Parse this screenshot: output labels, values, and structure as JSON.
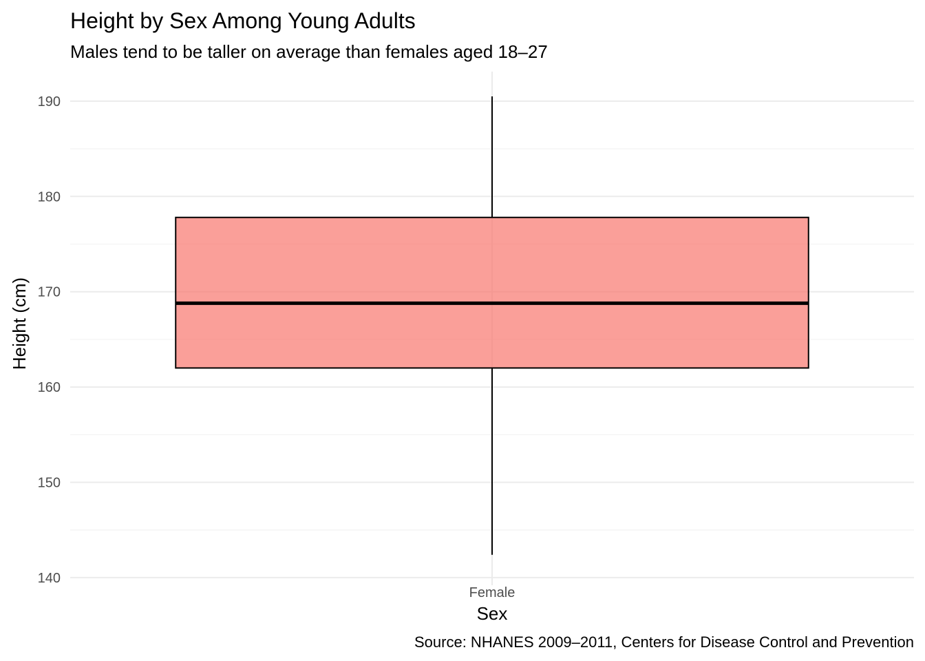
{
  "chart_data": {
    "type": "box",
    "title": "Height by Sex Among Young Adults",
    "subtitle": "Males tend to be taller on average than females aged 18–27",
    "xlabel": "Sex",
    "ylabel": "Height (cm)",
    "caption": "Source: NHANES 2009–2011, Centers for Disease Control and Prevention",
    "categories": [
      "Female"
    ],
    "yticks": [
      140,
      150,
      160,
      170,
      180,
      190
    ],
    "ylim": [
      139.2,
      193.1
    ],
    "grid": true,
    "boxes": [
      {
        "category": "Female",
        "whisker_low": 142.4,
        "q1": 162.0,
        "median": 168.8,
        "q3": 177.8,
        "whisker_high": 190.5,
        "fill": "#F8766D",
        "fill_opacity": 0.7
      }
    ]
  }
}
